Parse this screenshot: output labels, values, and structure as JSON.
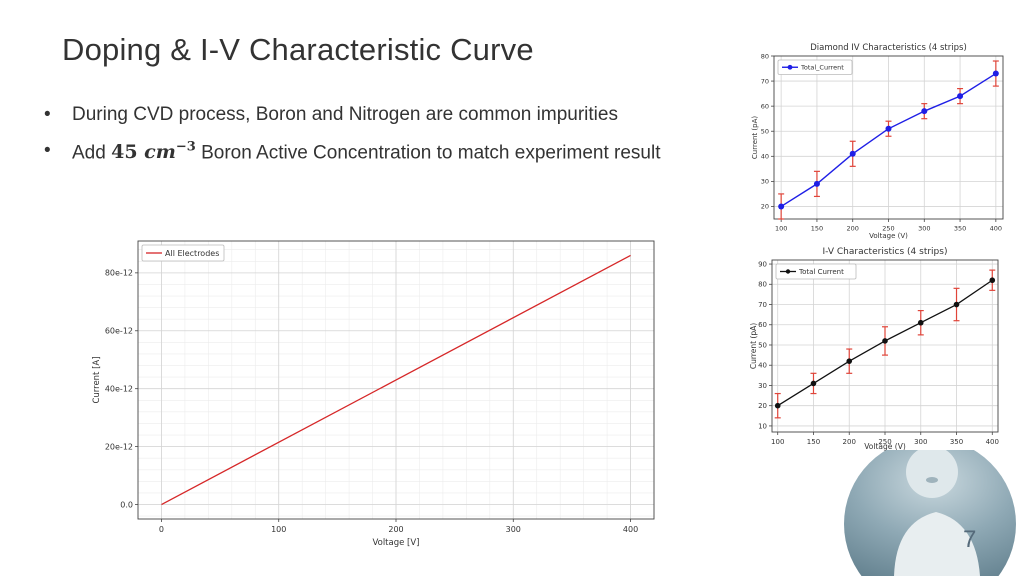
{
  "slide": {
    "title": "Doping & I-V Characteristic Curve",
    "bullet1": "During CVD process, Boron and Nitrogen are common impurities",
    "bullet2_prefix": "Add ",
    "bullet2_math_number": "45",
    "bullet2_math_unit": "cm",
    "bullet2_math_exp": "−3",
    "bullet2_suffix": " Boron Active Concentration to match experiment result",
    "page_number": "7"
  },
  "chart_data": [
    {
      "type": "line",
      "title": "",
      "xlabel": "Voltage [V]",
      "ylabel": "Current [A]",
      "xlim": [
        -20,
        420
      ],
      "ylim": [
        -5e-12,
        9.1e-11
      ],
      "xticks": [
        0,
        100,
        200,
        300,
        400
      ],
      "xtick_labels": [
        "0",
        "100",
        "200",
        "300",
        "400"
      ],
      "yticks": [
        0,
        2e-11,
        4e-11,
        6e-11,
        8e-11
      ],
      "ytick_labels": [
        "0.0",
        "20e-12",
        "40e-12",
        "60e-12",
        "80e-12"
      ],
      "grid": true,
      "legend": "top-left",
      "series": [
        {
          "name": "All Electrodes",
          "color": "#d62728",
          "x": [
            0,
            400
          ],
          "y": [
            0,
            8.6e-11
          ]
        }
      ]
    },
    {
      "type": "line",
      "title": "Diamond IV Characteristics (4 strips)",
      "xlabel": "Voltage (V)",
      "ylabel": "Current (pA)",
      "xlim": [
        90,
        410
      ],
      "ylim": [
        15,
        80
      ],
      "xticks": [
        100,
        150,
        200,
        250,
        300,
        350,
        400
      ],
      "yticks": [
        20,
        30,
        40,
        50,
        60,
        70,
        80
      ],
      "grid": true,
      "legend": "top-left",
      "series": [
        {
          "name": "Total_Current",
          "color": "#1f1fe6",
          "errcolor": "#e0453a",
          "x": [
            100,
            150,
            200,
            250,
            300,
            350,
            400
          ],
          "y": [
            20,
            29,
            41,
            51,
            58,
            64,
            73
          ],
          "err": [
            5,
            5,
            5,
            3,
            3,
            3,
            5
          ]
        }
      ]
    },
    {
      "type": "line",
      "title": "I-V Characteristics (4 strips)",
      "xlabel": "Voltage (V)",
      "ylabel": "Current (pA)",
      "xlim": [
        92,
        408
      ],
      "ylim": [
        7,
        92
      ],
      "xticks": [
        100,
        150,
        200,
        250,
        300,
        350,
        400
      ],
      "yticks": [
        10,
        20,
        30,
        40,
        50,
        60,
        70,
        80,
        90
      ],
      "grid": true,
      "legend": "top-left",
      "series": [
        {
          "name": "Total Current",
          "color": "#111111",
          "errcolor": "#e0453a",
          "x": [
            100,
            150,
            200,
            250,
            300,
            350,
            400
          ],
          "y": [
            20,
            31,
            42,
            52,
            61,
            70,
            82
          ],
          "err": [
            6,
            5,
            6,
            7,
            6,
            8,
            5
          ]
        }
      ]
    }
  ]
}
